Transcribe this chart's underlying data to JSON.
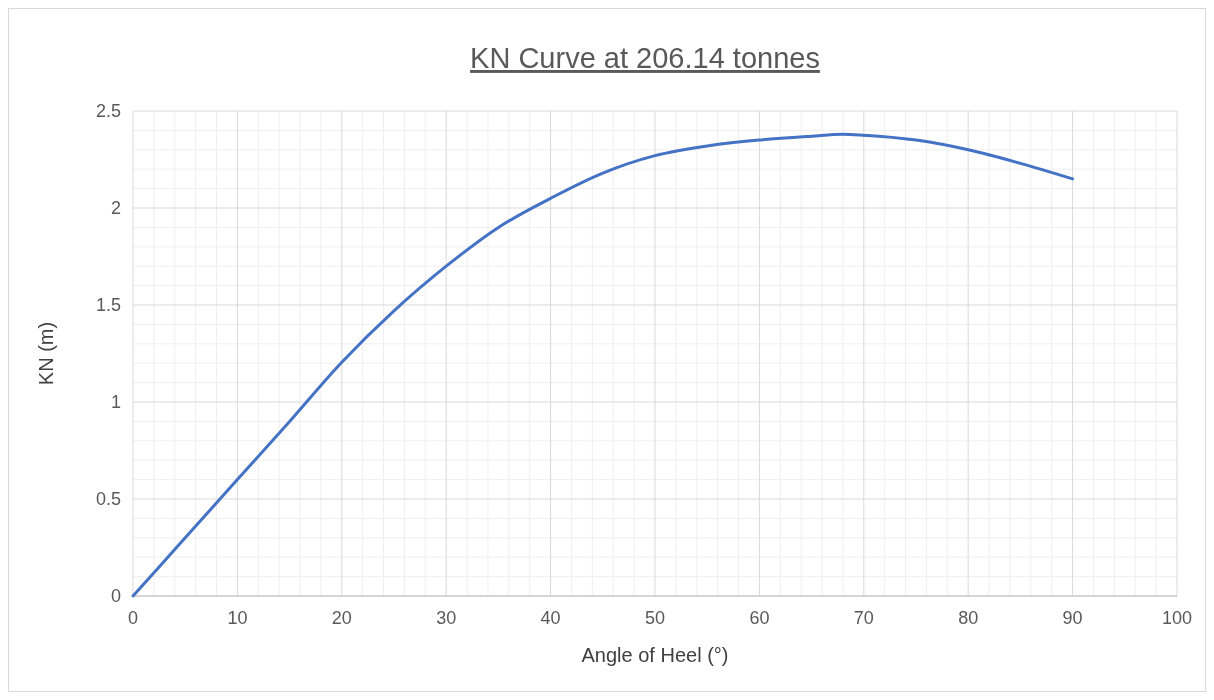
{
  "chart_data": {
    "type": "line",
    "title": "KN Curve at 206.14 tonnes",
    "xlabel": "Angle of Heel (°)",
    "ylabel": "KN (m)",
    "x": [
      0,
      5,
      10,
      15,
      20,
      25,
      30,
      35,
      40,
      45,
      50,
      55,
      60,
      65,
      68,
      70,
      75,
      80,
      85,
      90
    ],
    "series": [
      {
        "color": "#4472c4",
        "values": [
          0,
          0.3,
          0.6,
          0.9,
          1.205,
          1.47,
          1.7,
          1.9,
          2.05,
          2.18,
          2.27,
          2.32,
          2.35,
          2.37,
          2.38,
          2.375,
          2.35,
          2.3,
          2.23,
          2.15
        ]
      }
    ],
    "xlim": [
      0,
      100
    ],
    "xticks": [
      0,
      10,
      20,
      30,
      40,
      50,
      60,
      70,
      80,
      90,
      100
    ],
    "ylim": [
      0,
      2.5
    ],
    "yticks": [
      0,
      0.5,
      1,
      1.5,
      2,
      2.5
    ],
    "grid": true,
    "marker": "none",
    "line_style": "solid"
  }
}
